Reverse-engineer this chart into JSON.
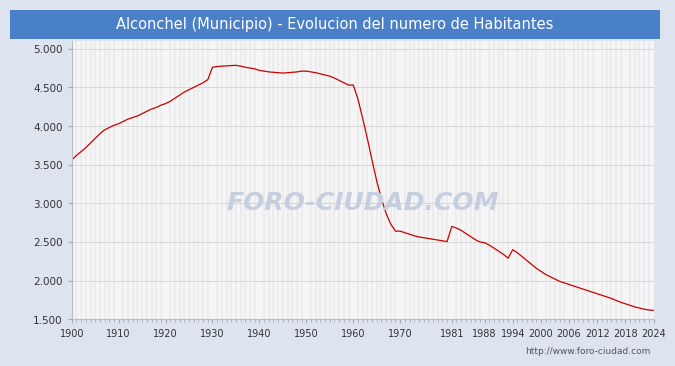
{
  "title": "Alconchel (Municipio) - Evolucion del numero de Habitantes",
  "title_bg": "#4a80c8",
  "title_color": "white",
  "url": "http://www.foro-ciudad.com",
  "xlim": [
    1900,
    2024
  ],
  "ylim": [
    1500,
    5100
  ],
  "yticks": [
    1500,
    2000,
    2500,
    3000,
    3500,
    4000,
    4500,
    5000
  ],
  "xticks": [
    1900,
    1910,
    1920,
    1930,
    1940,
    1950,
    1960,
    1970,
    1981,
    1988,
    1994,
    2000,
    2006,
    2012,
    2018,
    2024
  ],
  "line_color": "#cc0000",
  "fig_bg": "#dde4f0",
  "plot_bg": "#f5f5f5",
  "grid_color": "#cccccc",
  "watermark_color": "#c5cfe0",
  "data": [
    [
      1900,
      3560
    ],
    [
      1901,
      3620
    ],
    [
      1902,
      3670
    ],
    [
      1903,
      3720
    ],
    [
      1904,
      3780
    ],
    [
      1905,
      3840
    ],
    [
      1906,
      3900
    ],
    [
      1907,
      3950
    ],
    [
      1908,
      3980
    ],
    [
      1909,
      4010
    ],
    [
      1910,
      4030
    ],
    [
      1911,
      4060
    ],
    [
      1912,
      4090
    ],
    [
      1913,
      4110
    ],
    [
      1914,
      4130
    ],
    [
      1915,
      4160
    ],
    [
      1916,
      4190
    ],
    [
      1917,
      4220
    ],
    [
      1918,
      4240
    ],
    [
      1919,
      4270
    ],
    [
      1920,
      4290
    ],
    [
      1921,
      4320
    ],
    [
      1922,
      4360
    ],
    [
      1923,
      4400
    ],
    [
      1924,
      4440
    ],
    [
      1925,
      4470
    ],
    [
      1926,
      4500
    ],
    [
      1927,
      4530
    ],
    [
      1928,
      4560
    ],
    [
      1929,
      4600
    ],
    [
      1930,
      4760
    ],
    [
      1931,
      4770
    ],
    [
      1932,
      4775
    ],
    [
      1933,
      4778
    ],
    [
      1934,
      4782
    ],
    [
      1935,
      4785
    ],
    [
      1936,
      4775
    ],
    [
      1937,
      4760
    ],
    [
      1938,
      4750
    ],
    [
      1939,
      4740
    ],
    [
      1940,
      4720
    ],
    [
      1941,
      4710
    ],
    [
      1942,
      4700
    ],
    [
      1943,
      4695
    ],
    [
      1944,
      4690
    ],
    [
      1945,
      4685
    ],
    [
      1946,
      4690
    ],
    [
      1947,
      4695
    ],
    [
      1948,
      4700
    ],
    [
      1949,
      4710
    ],
    [
      1950,
      4710
    ],
    [
      1951,
      4700
    ],
    [
      1952,
      4690
    ],
    [
      1953,
      4675
    ],
    [
      1954,
      4660
    ],
    [
      1955,
      4645
    ],
    [
      1956,
      4620
    ],
    [
      1957,
      4590
    ],
    [
      1958,
      4560
    ],
    [
      1959,
      4530
    ],
    [
      1960,
      4530
    ],
    [
      1961,
      4350
    ],
    [
      1962,
      4100
    ],
    [
      1963,
      3840
    ],
    [
      1964,
      3560
    ],
    [
      1965,
      3290
    ],
    [
      1966,
      3060
    ],
    [
      1967,
      2870
    ],
    [
      1968,
      2730
    ],
    [
      1969,
      2640
    ],
    [
      1970,
      2640
    ],
    [
      1971,
      2620
    ],
    [
      1972,
      2600
    ],
    [
      1973,
      2580
    ],
    [
      1974,
      2565
    ],
    [
      1975,
      2555
    ],
    [
      1976,
      2545
    ],
    [
      1977,
      2535
    ],
    [
      1978,
      2525
    ],
    [
      1979,
      2515
    ],
    [
      1980,
      2505
    ],
    [
      1981,
      2700
    ],
    [
      1982,
      2680
    ],
    [
      1983,
      2650
    ],
    [
      1984,
      2610
    ],
    [
      1985,
      2570
    ],
    [
      1986,
      2530
    ],
    [
      1987,
      2500
    ],
    [
      1988,
      2490
    ],
    [
      1989,
      2460
    ],
    [
      1990,
      2420
    ],
    [
      1991,
      2380
    ],
    [
      1992,
      2340
    ],
    [
      1993,
      2290
    ],
    [
      1994,
      2400
    ],
    [
      1995,
      2360
    ],
    [
      1996,
      2310
    ],
    [
      1997,
      2260
    ],
    [
      1998,
      2210
    ],
    [
      1999,
      2160
    ],
    [
      2000,
      2120
    ],
    [
      2001,
      2080
    ],
    [
      2002,
      2050
    ],
    [
      2003,
      2020
    ],
    [
      2004,
      1990
    ],
    [
      2005,
      1970
    ],
    [
      2006,
      1950
    ],
    [
      2007,
      1930
    ],
    [
      2008,
      1910
    ],
    [
      2009,
      1890
    ],
    [
      2010,
      1870
    ],
    [
      2011,
      1850
    ],
    [
      2012,
      1830
    ],
    [
      2013,
      1810
    ],
    [
      2014,
      1790
    ],
    [
      2015,
      1770
    ],
    [
      2016,
      1745
    ],
    [
      2017,
      1720
    ],
    [
      2018,
      1700
    ],
    [
      2019,
      1680
    ],
    [
      2020,
      1660
    ],
    [
      2021,
      1645
    ],
    [
      2022,
      1630
    ],
    [
      2023,
      1620
    ],
    [
      2024,
      1615
    ]
  ]
}
